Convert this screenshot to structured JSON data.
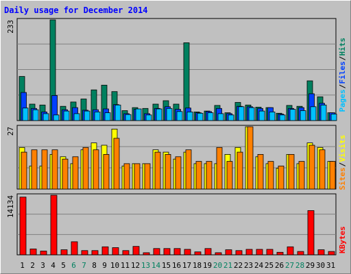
{
  "title": "Daily usage for December 2014",
  "colors": {
    "background": "#c0c0c0",
    "plot_bg": "#c0c0c0",
    "pages": "#00805f",
    "files": "#0040ff",
    "hits": "#00c0ff",
    "visits": "#ffff00",
    "sites": "#ff8000",
    "kbytes": "#ff0000",
    "weekend": "#00805f",
    "weekday": "#000000"
  },
  "chart_data": [
    {
      "type": "bar",
      "panel": "hits_files_pages",
      "y_max_label": "233",
      "legend": [
        {
          "text": "Pages",
          "color": "#00c0ff"
        },
        {
          "text": "Files",
          "color": "#0040ff"
        },
        {
          "text": "Hits",
          "color": "#00805f"
        }
      ],
      "x": [
        1,
        2,
        3,
        4,
        5,
        6,
        7,
        8,
        9,
        10,
        11,
        12,
        13,
        14,
        15,
        16,
        17,
        18,
        19,
        20,
        21,
        22,
        23,
        24,
        25,
        26,
        27,
        28,
        29,
        30,
        31
      ],
      "series": [
        {
          "name": "Hits",
          "values": [
            102,
            38,
            36,
            233,
            33,
            43,
            50,
            71,
            82,
            67,
            23,
            30,
            28,
            38,
            46,
            38,
            180,
            20,
            22,
            35,
            18,
            42,
            36,
            31,
            30,
            17,
            35,
            33,
            92,
            55,
            18
          ]
        },
        {
          "name": "Files",
          "values": [
            65,
            28,
            20,
            58,
            25,
            30,
            24,
            25,
            27,
            37,
            16,
            26,
            16,
            28,
            32,
            26,
            29,
            18,
            21,
            28,
            16,
            33,
            32,
            28,
            30,
            15,
            28,
            30,
            62,
            40,
            18
          ]
        },
        {
          "name": "Pages",
          "values": [
            29,
            25,
            16,
            13,
            22,
            16,
            22,
            20,
            18,
            36,
            14,
            27,
            13,
            27,
            28,
            21,
            20,
            17,
            18,
            16,
            13,
            32,
            30,
            22,
            20,
            13,
            26,
            23,
            32,
            36,
            15
          ]
        }
      ],
      "ylim": [
        0,
        233
      ]
    },
    {
      "type": "bar",
      "panel": "visits_sites",
      "y_max_label": "27",
      "legend": [
        {
          "text": "Sites",
          "color": "#ff8000"
        },
        {
          "text": "Visits",
          "color": "#ffff00"
        }
      ],
      "x": [
        1,
        2,
        3,
        4,
        5,
        6,
        7,
        8,
        9,
        10,
        11,
        12,
        13,
        14,
        15,
        16,
        17,
        18,
        19,
        20,
        21,
        22,
        23,
        24,
        25,
        26,
        27,
        28,
        29,
        30,
        31
      ],
      "series": [
        {
          "name": "Visits",
          "values": [
            18,
            10,
            10,
            15,
            14,
            11,
            17,
            20,
            19,
            26,
            10,
            11,
            11,
            17,
            16,
            13,
            16,
            11,
            11,
            11,
            15,
            18,
            27,
            14,
            11,
            9,
            15,
            11,
            20,
            18,
            12
          ]
        },
        {
          "name": "Sites",
          "values": [
            16,
            17,
            17,
            17,
            13,
            14,
            18,
            17,
            15,
            22,
            11,
            11,
            11,
            16,
            15,
            14,
            17,
            12,
            12,
            18,
            12,
            16,
            27,
            15,
            12,
            10,
            15,
            12,
            19,
            17,
            12
          ]
        }
      ],
      "ylim": [
        0,
        27
      ]
    },
    {
      "type": "bar",
      "panel": "kbytes",
      "y_max_label": "14134",
      "legend": [
        {
          "text": "KBytes",
          "color": "#ff0000"
        }
      ],
      "x": [
        1,
        2,
        3,
        4,
        5,
        6,
        7,
        8,
        9,
        10,
        11,
        12,
        13,
        14,
        15,
        16,
        17,
        18,
        19,
        20,
        21,
        22,
        23,
        24,
        25,
        26,
        27,
        28,
        29,
        30,
        31
      ],
      "series": [
        {
          "name": "KBytes",
          "values": [
            13700,
            1400,
            900,
            14134,
            1200,
            3100,
            1000,
            1000,
            1900,
            1700,
            1000,
            2000,
            500,
            1500,
            1500,
            1500,
            1300,
            700,
            1500,
            500,
            1200,
            1000,
            1300,
            1300,
            1300,
            600,
            1900,
            800,
            10500,
            1200,
            800
          ]
        }
      ],
      "ylim": [
        0,
        14134
      ]
    }
  ],
  "x_tick_labels": [
    "1",
    "2",
    "3",
    "4",
    "5",
    "6",
    "7",
    "8",
    "9",
    "10",
    "11",
    "12",
    "13",
    "14",
    "15",
    "16",
    "17",
    "18",
    "19",
    "20",
    "21",
    "22",
    "23",
    "24",
    "25",
    "26",
    "27",
    "28",
    "29",
    "30",
    "31"
  ],
  "weekend_days": [
    6,
    7,
    13,
    14,
    20,
    21,
    27,
    28
  ]
}
